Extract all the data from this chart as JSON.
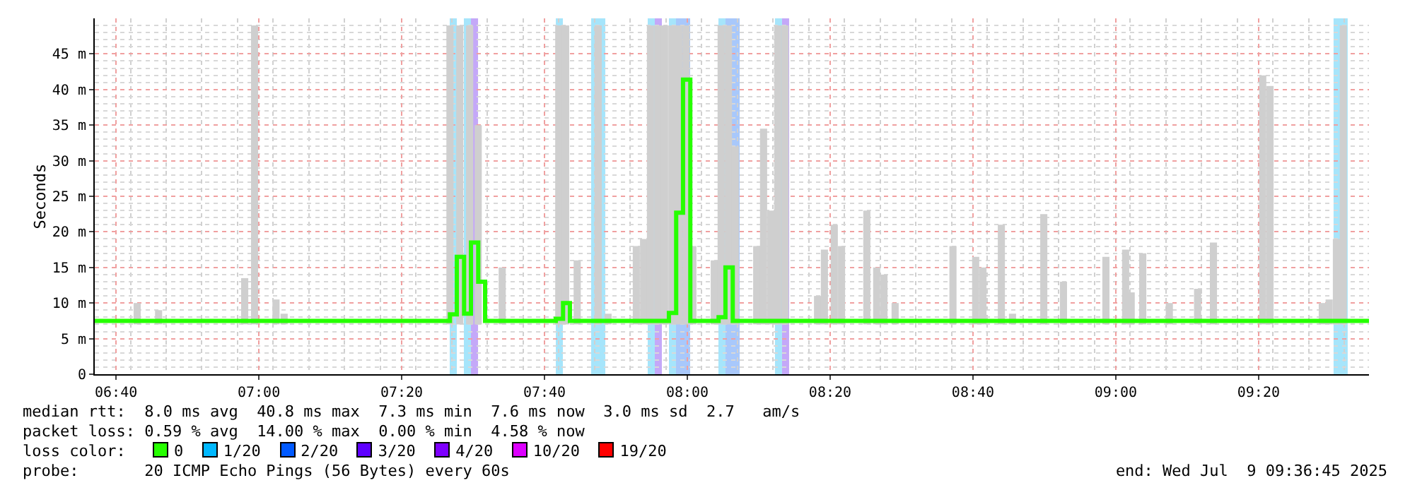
{
  "chart_data": {
    "type": "bar",
    "ylabel": "Seconds",
    "xlim": [
      6.617,
      9.591
    ],
    "xticks": [
      {
        "value": 6.666667,
        "label": "06:40"
      },
      {
        "value": 7,
        "label": "07:00"
      },
      {
        "value": 7.333333,
        "label": "07:20"
      },
      {
        "value": 7.666667,
        "label": "07:40"
      },
      {
        "value": 8,
        "label": "08:00"
      },
      {
        "value": 8.333333,
        "label": "08:20"
      },
      {
        "value": 8.666667,
        "label": "08:40"
      },
      {
        "value": 9,
        "label": "09:00"
      },
      {
        "value": 9.333333,
        "label": "09:20"
      }
    ],
    "ylim": [
      0,
      50
    ],
    "yticks": [
      0,
      {
        "value": 5,
        "label": "5 m"
      },
      {
        "value": 10,
        "label": "10 m"
      },
      {
        "value": 15,
        "label": "15 m"
      },
      {
        "value": 20,
        "label": "20 m"
      },
      {
        "value": 25,
        "label": "25 m"
      },
      {
        "value": 30,
        "label": "30 m"
      },
      {
        "value": 35,
        "label": "35 m"
      },
      {
        "value": 40,
        "label": "40 m"
      },
      {
        "value": 45,
        "label": "45 m"
      }
    ],
    "grid": true,
    "series": [
      {
        "color": "#cfcfcf",
        "x": [
          6.716,
          6.766,
          6.967,
          6.99,
          7.04,
          7.059,
          7.446,
          7.469,
          7.492,
          7.512,
          7.568,
          7.7,
          7.716,
          7.743,
          7.792,
          7.815,
          7.881,
          7.898,
          7.914,
          7.931,
          7.947,
          7.964,
          7.98,
          7.997,
          8.013,
          8.063,
          8.079,
          8.096,
          8.112,
          8.162,
          8.178,
          8.195,
          8.211,
          8.228,
          8.304,
          8.32,
          8.343,
          8.36,
          8.419,
          8.442,
          8.459,
          8.485,
          8.62,
          8.673,
          8.69,
          8.733,
          8.759,
          8.832,
          8.878,
          8.977,
          9.023,
          9.036,
          9.063,
          9.125,
          9.191,
          9.228,
          9.343,
          9.36,
          9.482,
          9.498,
          9.515,
          9.531
        ],
        "base": [
          7,
          7,
          7,
          7,
          7,
          7,
          7,
          7,
          7,
          7,
          7,
          7,
          7,
          7,
          7,
          7,
          7,
          7,
          7,
          7,
          7,
          7,
          7,
          7,
          7,
          7,
          7,
          7,
          7,
          7,
          7,
          7,
          7,
          7,
          7,
          7,
          7,
          7,
          7,
          7,
          7,
          7,
          7,
          7,
          7,
          7,
          7,
          7,
          7,
          7,
          7,
          7,
          7,
          7,
          7,
          7,
          7,
          7,
          7,
          7,
          7,
          7
        ],
        "values": [
          3,
          2,
          6.5,
          42,
          3.5,
          1.5,
          42,
          42,
          42,
          28,
          8,
          42,
          42,
          9,
          42,
          1.5,
          11,
          12,
          42,
          42,
          42,
          42,
          42,
          42,
          11,
          9,
          42,
          42,
          25,
          11,
          27.5,
          16,
          42,
          42,
          4,
          10.5,
          14,
          11,
          16,
          8,
          7,
          3,
          11,
          9.5,
          8,
          14,
          1.5,
          15.5,
          6,
          9.5,
          10.5,
          4.5,
          10,
          3,
          5,
          11.5,
          35,
          33.5,
          3,
          3.5,
          12,
          42
        ]
      },
      {
        "type": "step",
        "color": "#26ff00",
        "x": [
          6.617,
          7.446,
          7.462,
          7.479,
          7.495,
          7.512,
          7.528,
          7.693,
          7.71,
          7.726,
          7.957,
          7.974,
          7.99,
          8.007,
          8.073,
          8.089,
          8.106,
          9.591
        ],
        "values": [
          7.5,
          8.4,
          16.5,
          8.5,
          18.5,
          13,
          7.5,
          7.8,
          10,
          7.5,
          8.6,
          22.7,
          41.4,
          7.5,
          8,
          15,
          7.5,
          7.5
        ]
      }
    ],
    "bands": [
      {
        "axis": "x",
        "from": 7.4455,
        "to": 7.462,
        "color": "#a6e5fb"
      },
      {
        "axis": "x",
        "from": 7.4785,
        "to": 7.495,
        "color": "#a6e5fb"
      },
      {
        "axis": "x",
        "from": 7.495,
        "to": 7.5116,
        "color": "#c4a8f8"
      },
      {
        "axis": "x",
        "from": 7.6931,
        "to": 7.7096,
        "color": "#a6e5fb"
      },
      {
        "axis": "x",
        "from": 7.7756,
        "to": 7.8086,
        "color": "#a6e5fb"
      },
      {
        "axis": "x",
        "from": 7.9076,
        "to": 7.9241,
        "color": "#a6e5fb"
      },
      {
        "axis": "x",
        "from": 7.9241,
        "to": 7.9406,
        "color": "#c4a8f8"
      },
      {
        "axis": "x",
        "from": 7.9571,
        "to": 7.9736,
        "color": "#a6e5fb"
      },
      {
        "axis": "x",
        "from": 7.9736,
        "to": 8.0066,
        "color": "#a8c8fb"
      },
      {
        "axis": "x",
        "from": 8.0726,
        "to": 8.0891,
        "color": "#a6e5fb"
      },
      {
        "axis": "x",
        "from": 8.0891,
        "to": 8.1221,
        "color": "#a8c8fb"
      },
      {
        "axis": "x",
        "from": 8.2046,
        "to": 8.2211,
        "color": "#a6e5fb"
      },
      {
        "axis": "x",
        "from": 8.2211,
        "to": 8.2376,
        "color": "#c4a8f8"
      },
      {
        "axis": "x",
        "from": 9.5083,
        "to": 9.5413,
        "color": "#a6e5fb"
      }
    ],
    "annotations": [
      "median rtt:  8.0 ms avg  40.8 ms max  7.3 ms min  7.6 ms now  3.0 ms sd  2.7   am/s",
      "packet loss: 0.59 % avg  14.00 % max  0.00 % min  4.58 % now",
      "loss color:",
      "0",
      "1/20",
      "2/20",
      "3/20",
      "4/20",
      "10/20",
      "19/20",
      "probe:       20 ICMP Echo Pings (56 Bytes) every 60s",
      "end: Wed Jul  9 09:36:45 2025"
    ]
  }
}
